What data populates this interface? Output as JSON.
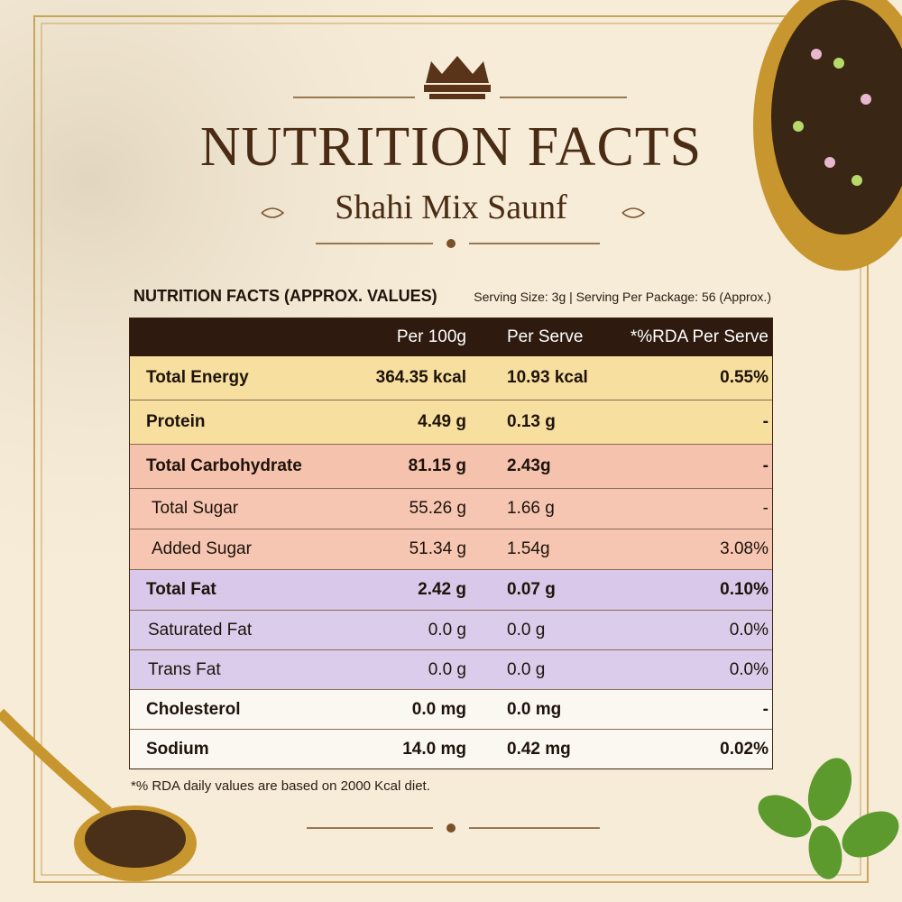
{
  "header": {
    "title": "NUTRITION FACTS",
    "subtitle": "Shahi Mix Saunf"
  },
  "table": {
    "heading": "NUTRITION FACTS (APPROX. VALUES)",
    "serving": "Serving Size: 3g | Serving Per Package: 56 (Approx.)",
    "columns": [
      "Per 100g",
      "Per Serve",
      "*%RDA Per Serve"
    ],
    "rows": [
      [
        "Total Energy",
        "364.35 kcal",
        "10.93 kcal",
        "0.55%"
      ],
      [
        "Protein",
        "4.49 g",
        "0.13 g",
        "-"
      ],
      [
        "Total Carbohydrate",
        "81.15 g",
        "2.43g",
        "-"
      ],
      [
        "Total Sugar",
        "55.26 g",
        "1.66 g",
        "-"
      ],
      [
        "Added Sugar",
        "51.34 g",
        "1.54g",
        "3.08%"
      ],
      [
        "Total Fat",
        "2.42 g",
        "0.07 g",
        "0.10%"
      ],
      [
        "Saturated Fat",
        "0.0 g",
        "0.0 g",
        "0.0%"
      ],
      [
        "Trans Fat",
        "0.0 g",
        "0.0 g",
        "0.0%"
      ],
      [
        "Cholesterol",
        "0.0 mg",
        "0.0 mg",
        "-"
      ],
      [
        "Sodium",
        "14.0 mg",
        "0.42 mg",
        "0.02%"
      ]
    ]
  },
  "footnote": "*% RDA daily values are based on 2000 Kcal diet."
}
